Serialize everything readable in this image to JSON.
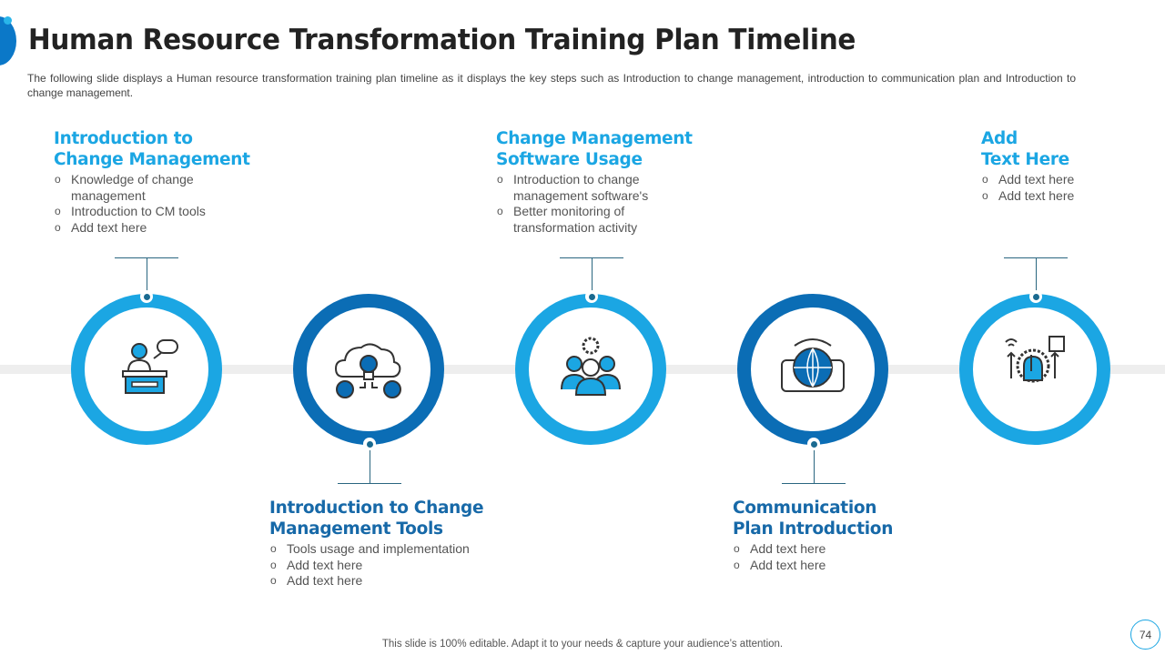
{
  "header": {
    "title": "Human Resource Transformation Training Plan Timeline",
    "description": "The following slide displays a Human resource transformation training plan timeline as it displays the key steps such as Introduction to change management, introduction to communication plan and Introduction to change management."
  },
  "colors": {
    "light_blue": "#1ba6e3",
    "dark_blue": "#0b6db5",
    "timeline": "#eeeeee"
  },
  "steps": [
    {
      "title_1": "Introduction to",
      "title_2": "Change Management",
      "bullets": [
        "Knowledge of change management",
        "Introduction to CM tools",
        "Add text here"
      ],
      "icon": "presenter-podium-icon"
    },
    {
      "title_1": "Introduction to Change",
      "title_2": "Management Tools",
      "bullets": [
        "Tools usage and implementation",
        "Add text here",
        "Add text here"
      ],
      "icon": "cloud-bulb-gears-icon"
    },
    {
      "title_1": "Change Management",
      "title_2": "Software Usage",
      "bullets": [
        "Introduction to change management software's",
        "Better monitoring of transformation activity"
      ],
      "icon": "team-gear-icon"
    },
    {
      "title_1": "Communication",
      "title_2": "Plan Introduction",
      "bullets": [
        "Add text here",
        "Add text here"
      ],
      "icon": "tablet-globe-icon"
    },
    {
      "title_1": "Add",
      "title_2": "Text Here",
      "bullets": [
        "Add text here",
        "Add text here"
      ],
      "icon": "hand-gear-icon"
    }
  ],
  "footer": {
    "text": "This slide is 100% editable. Adapt it to your needs & capture your audience’s attention.",
    "page": "74"
  }
}
